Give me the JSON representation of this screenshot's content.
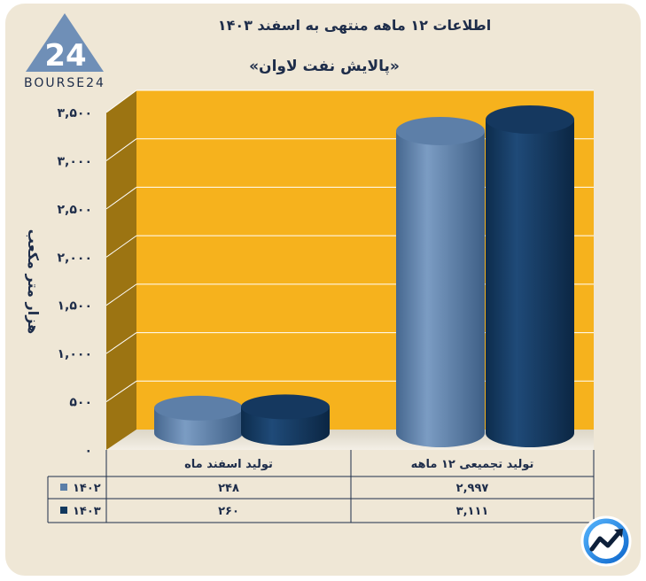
{
  "logo": {
    "text": "BOURSE24",
    "mark": "24"
  },
  "chart_data": {
    "type": "bar",
    "title": "اطلاعات ۱۲ ماهه منتهی به اسفند ۱۴۰۳",
    "subtitle": "«پالایش نفت لاوان»",
    "ylabel": "هزار متر مکعب",
    "ylim": [
      0,
      3500
    ],
    "yticks": [
      0,
      500,
      1000,
      1500,
      2000,
      2500,
      3000,
      3500
    ],
    "ytick_labels": [
      "۰",
      "۵۰۰",
      "۱,۰۰۰",
      "۱,۵۰۰",
      "۲,۰۰۰",
      "۲,۵۰۰",
      "۳,۰۰۰",
      "۳,۵۰۰"
    ],
    "categories": [
      "تولید اسفند ماه",
      "تولید تجمیعی ۱۲ ماهه"
    ],
    "series": [
      {
        "name": "۱۴۰۲",
        "values": [
          248,
          2997
        ],
        "labels": [
          "۲۴۸",
          "۲,۹۹۷"
        ],
        "color": "#5b7ea8"
      },
      {
        "name": "۱۴۰۳",
        "values": [
          260,
          3111
        ],
        "labels": [
          "۲۶۰",
          "۳,۱۱۱"
        ],
        "color": "#12385e"
      }
    ],
    "grid": true,
    "legend": "table-left"
  },
  "colors": {
    "plot_back": "#f6b21d",
    "plot_side": "#9c7412",
    "frame": "#efe7d6",
    "title": "#1e2d4a"
  },
  "icons": {
    "badge": "trend-arrow-icon"
  }
}
